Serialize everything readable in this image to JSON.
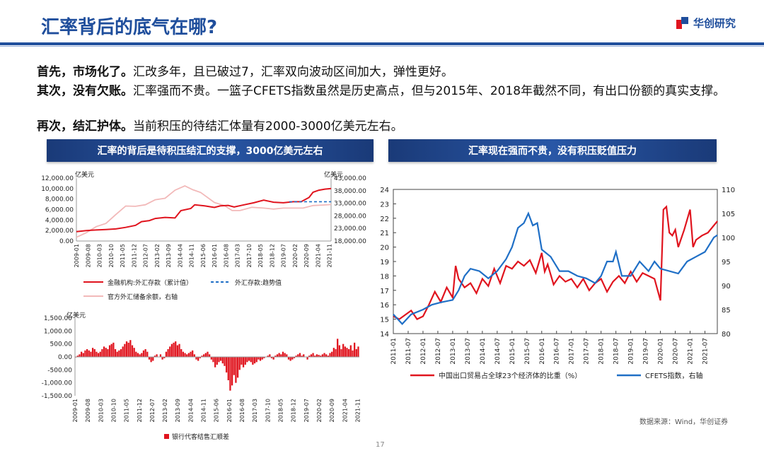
{
  "header": {
    "title": "汇率背后的底气在哪?",
    "brand": "华创研究"
  },
  "body": {
    "p1_bold": "首先，市场化了。",
    "p1_rest": "汇改多年，且已破过7，汇率双向波动区间加大，弹性更好。",
    "p2_bold": "其次，没有欠账。",
    "p2_rest": "汇率强而不贵。一篮子CFETS指数虽然是历史高点，但与2015年、2018年截然不同，有出口份额的真实支撑。",
    "p3_bold": "再次，结汇护体。",
    "p3_rest": "当前积压的待结汇体量有2000-3000亿美元左右。"
  },
  "banners": {
    "left": "汇率的背后是待积压结汇的支撑，3000亿美元左右",
    "right": "汇率现在强而不贵，没有积压贬值压力"
  },
  "footer": {
    "source": "数据来源：Wind，华创证券",
    "page": "17"
  },
  "colors": {
    "brand_blue": "#1f4e9c",
    "red": "#e0141e",
    "pink": "#f2b9b9",
    "blue": "#1f6fc6"
  },
  "chart_data": [
    {
      "type": "line",
      "unit_left": "亿美元",
      "unit_right": "亿美元",
      "ylim": [
        0,
        12000
      ],
      "yticks": [
        "12,000.00",
        "10,000.00",
        "8,000.00",
        "6,000.00",
        "4,000.00",
        "2,000.00",
        "0.00"
      ],
      "y2lim": [
        18000,
        43000
      ],
      "y2ticks": [
        "43,000.00",
        "38,000.00",
        "33,000.00",
        "28,000.00",
        "23,000.00",
        "18,000.00"
      ],
      "x_range": [
        "2009-01",
        "2021-12"
      ],
      "xticks": [
        "2009-01",
        "2009-08",
        "2010-03",
        "2010-10",
        "2011-05",
        "2011-12",
        "2012-07",
        "2013-02",
        "2013-09",
        "2014-04",
        "2014-11",
        "2015-06",
        "2016-01",
        "2016-08",
        "2017-03",
        "2017-10",
        "2018-05",
        "2018-12",
        "2019-07",
        "2020-02",
        "2020-09",
        "2021-04",
        "2021-11"
      ],
      "legend": [
        "金融机构:外汇存款（累计值）",
        "外汇存款:趋势值",
        "官方外汇储备余额，右轴"
      ],
      "series": [
        {
          "name": "金融机构:外汇存款（累计值）",
          "axis": "left",
          "x": [
            2009.0,
            2009.5,
            2010.0,
            2010.5,
            2011.0,
            2011.5,
            2012.0,
            2012.3,
            2012.7,
            2013.0,
            2013.5,
            2014.0,
            2014.3,
            2014.8,
            2015.0,
            2015.5,
            2016.0,
            2016.3,
            2016.7,
            2017.0,
            2017.5,
            2018.0,
            2018.5,
            2019.0,
            2019.5,
            2020.0,
            2020.4,
            2020.8,
            2021.0,
            2021.3,
            2021.6,
            2021.92
          ],
          "values": [
            1800,
            2000,
            2100,
            2200,
            2300,
            2600,
            3000,
            3700,
            3900,
            4300,
            4500,
            4400,
            5800,
            6200,
            6900,
            6700,
            6400,
            6700,
            6800,
            6500,
            6900,
            7300,
            7800,
            7400,
            7300,
            7500,
            7500,
            8300,
            9300,
            9700,
            9900,
            10000
          ]
        },
        {
          "name": "外汇存款:趋势值",
          "axis": "left",
          "x": [
            2019.8,
            2021.92
          ],
          "values": [
            7500,
            7500
          ]
        },
        {
          "name": "官方外汇储备余额，右轴",
          "axis": "right",
          "x": [
            2009.0,
            2009.5,
            2010.0,
            2010.5,
            2011.0,
            2011.5,
            2012.0,
            2012.5,
            2013.0,
            2013.5,
            2014.0,
            2014.5,
            2014.9,
            2015.3,
            2015.6,
            2016.0,
            2016.5,
            2016.9,
            2017.3,
            2017.9,
            2018.5,
            2019.0,
            2019.5,
            2020.0,
            2020.5,
            2021.0,
            2021.5,
            2021.92
          ],
          "values": [
            19500,
            21300,
            23700,
            25000,
            28500,
            31900,
            31800,
            32400,
            34400,
            35000,
            38200,
            39900,
            38400,
            37300,
            35600,
            33300,
            32100,
            30100,
            30100,
            31400,
            31100,
            30700,
            31100,
            31100,
            31100,
            32100,
            32300,
            32500
          ]
        }
      ]
    },
    {
      "type": "bar",
      "unit": "亿美元",
      "ylim": [
        -1500,
        1500
      ],
      "yticks": [
        "1,500.00",
        "1,000.00",
        "500.00",
        "0.00",
        "-500.00",
        "-1,000.00",
        "-1,500.00"
      ],
      "x_range": [
        "2009-01",
        "2021-12"
      ],
      "xticks": [
        "2009-01",
        "2009-08",
        "2010-03",
        "2010-10",
        "2011-05",
        "2011-12",
        "2012-07",
        "2013-02",
        "2013-09",
        "2014-04",
        "2014-11",
        "2015-06",
        "2016-01",
        "2016-08",
        "2017-03",
        "2017-10",
        "2018-05",
        "2018-12",
        "2019-07",
        "2020-02",
        "2020-09",
        "2021-04",
        "2021-11"
      ],
      "legend": [
        "银行代客结售汇顺差"
      ],
      "series": [
        {
          "name": "银行代客结售汇顺差",
          "values": [
            -20,
            50,
            100,
            200,
            150,
            250,
            300,
            250,
            200,
            350,
            300,
            200,
            150,
            200,
            300,
            400,
            350,
            300,
            450,
            500,
            550,
            300,
            200,
            250,
            300,
            400,
            500,
            600,
            550,
            650,
            450,
            350,
            200,
            150,
            100,
            150,
            250,
            300,
            200,
            -100,
            -200,
            -150,
            50,
            100,
            0,
            100,
            -100,
            -50,
            200,
            300,
            400,
            500,
            550,
            600,
            450,
            500,
            300,
            200,
            150,
            100,
            150,
            200,
            250,
            100,
            -100,
            -150,
            -50,
            50,
            100,
            150,
            200,
            100,
            -100,
            -200,
            -400,
            -300,
            -200,
            -150,
            -250,
            -350,
            -600,
            -900,
            -1300,
            -1100,
            -700,
            -1000,
            -800,
            -500,
            -300,
            -400,
            -300,
            -200,
            -150,
            -200,
            -300,
            -250,
            -200,
            -100,
            -150,
            -100,
            -50,
            0,
            50,
            100,
            -50,
            -100,
            50,
            100,
            150,
            100,
            200,
            150,
            100,
            -100,
            -150,
            -100,
            -50,
            50,
            100,
            150,
            50,
            100,
            0,
            -100,
            50,
            100,
            150,
            50,
            100,
            80,
            50,
            100,
            150,
            100,
            50,
            150,
            200,
            350,
            300,
            700,
            450,
            300,
            500,
            400,
            350,
            300,
            450,
            250,
            550,
            300,
            400
          ]
        }
      ]
    },
    {
      "type": "line",
      "ylim": [
        14,
        24
      ],
      "yticks": [
        "24",
        "23",
        "22",
        "21",
        "20",
        "19",
        "18",
        "17",
        "16",
        "15",
        "14"
      ],
      "y2lim": [
        80,
        110
      ],
      "y2ticks": [
        "110",
        "105",
        "100",
        "95",
        "90",
        "85",
        "80"
      ],
      "x_range": [
        "2011-01",
        "2021-12"
      ],
      "xticks": [
        "2011-01",
        "2011-07",
        "2012-01",
        "2012-07",
        "2013-01",
        "2013-07",
        "2014-01",
        "2014-07",
        "2015-01",
        "2015-07",
        "2016-01",
        "2016-07",
        "2017-01",
        "2017-07",
        "2018-01",
        "2018-07",
        "2019-01",
        "2019-07",
        "2020-01",
        "2020-07",
        "2021-01",
        "2021-07"
      ],
      "legend": [
        "中国出口贸易占全球23个经济体的比重（%）",
        "CFETS指数，右轴"
      ],
      "series": [
        {
          "name": "中国出口贸易占全球23个经济体的比重（%）",
          "axis": "left",
          "x": [
            2011.0,
            2011.2,
            2011.4,
            2011.6,
            2011.8,
            2012.0,
            2012.2,
            2012.4,
            2012.6,
            2012.8,
            2013.0,
            2013.1,
            2013.2,
            2013.4,
            2013.6,
            2013.8,
            2014.0,
            2014.2,
            2014.4,
            2014.6,
            2014.8,
            2015.0,
            2015.2,
            2015.4,
            2015.6,
            2015.8,
            2016.0,
            2016.1,
            2016.2,
            2016.4,
            2016.6,
            2016.8,
            2017.0,
            2017.2,
            2017.4,
            2017.6,
            2017.8,
            2018.0,
            2018.2,
            2018.4,
            2018.6,
            2018.8,
            2019.0,
            2019.2,
            2019.4,
            2019.6,
            2019.8,
            2020.0,
            2020.1,
            2020.2,
            2020.3,
            2020.4,
            2020.5,
            2020.6,
            2020.8,
            2021.0,
            2021.1,
            2021.2,
            2021.4,
            2021.6,
            2021.92
          ],
          "values": [
            15.2,
            15.0,
            15.3,
            15.6,
            15.0,
            15.2,
            16.0,
            16.9,
            16.2,
            17.2,
            16.5,
            18.7,
            17.8,
            17.2,
            17.5,
            16.8,
            17.8,
            17.3,
            18.5,
            17.5,
            18.7,
            18.5,
            19.0,
            18.7,
            19.1,
            18.2,
            19.6,
            18.3,
            18.8,
            17.4,
            18.0,
            17.6,
            17.8,
            17.2,
            17.8,
            17.0,
            17.5,
            17.8,
            16.9,
            17.6,
            18.0,
            17.5,
            18.3,
            17.6,
            18.2,
            18.0,
            17.8,
            16.3,
            22.6,
            22.8,
            21.0,
            20.8,
            21.2,
            20.0,
            21.2,
            22.6,
            20.0,
            20.5,
            20.8,
            21.0,
            21.8
          ]
        },
        {
          "name": "CFETS指数，右轴",
          "axis": "right",
          "x": [
            2011.0,
            2011.3,
            2011.6,
            2012.0,
            2012.3,
            2012.6,
            2013.0,
            2013.2,
            2013.4,
            2013.6,
            2013.9,
            2014.2,
            2014.5,
            2014.8,
            2015.0,
            2015.2,
            2015.4,
            2015.55,
            2015.7,
            2015.85,
            2016.0,
            2016.3,
            2016.6,
            2016.9,
            2017.2,
            2017.5,
            2017.8,
            2018.0,
            2018.2,
            2018.4,
            2018.5,
            2018.7,
            2019.0,
            2019.3,
            2019.6,
            2019.8,
            2020.0,
            2020.3,
            2020.6,
            2020.9,
            2021.2,
            2021.5,
            2021.8,
            2021.92
          ],
          "values": [
            84,
            82,
            84,
            85,
            86,
            86.5,
            87,
            89,
            92,
            93.5,
            93,
            91.5,
            93,
            95.5,
            98,
            102,
            103,
            105,
            102.5,
            103,
            97.5,
            96,
            93,
            93,
            92,
            91.5,
            90.5,
            92,
            95,
            95,
            97,
            92,
            92,
            95,
            93,
            95,
            93.5,
            93,
            92.5,
            95,
            96,
            97,
            100,
            100.5
          ]
        }
      ]
    }
  ]
}
